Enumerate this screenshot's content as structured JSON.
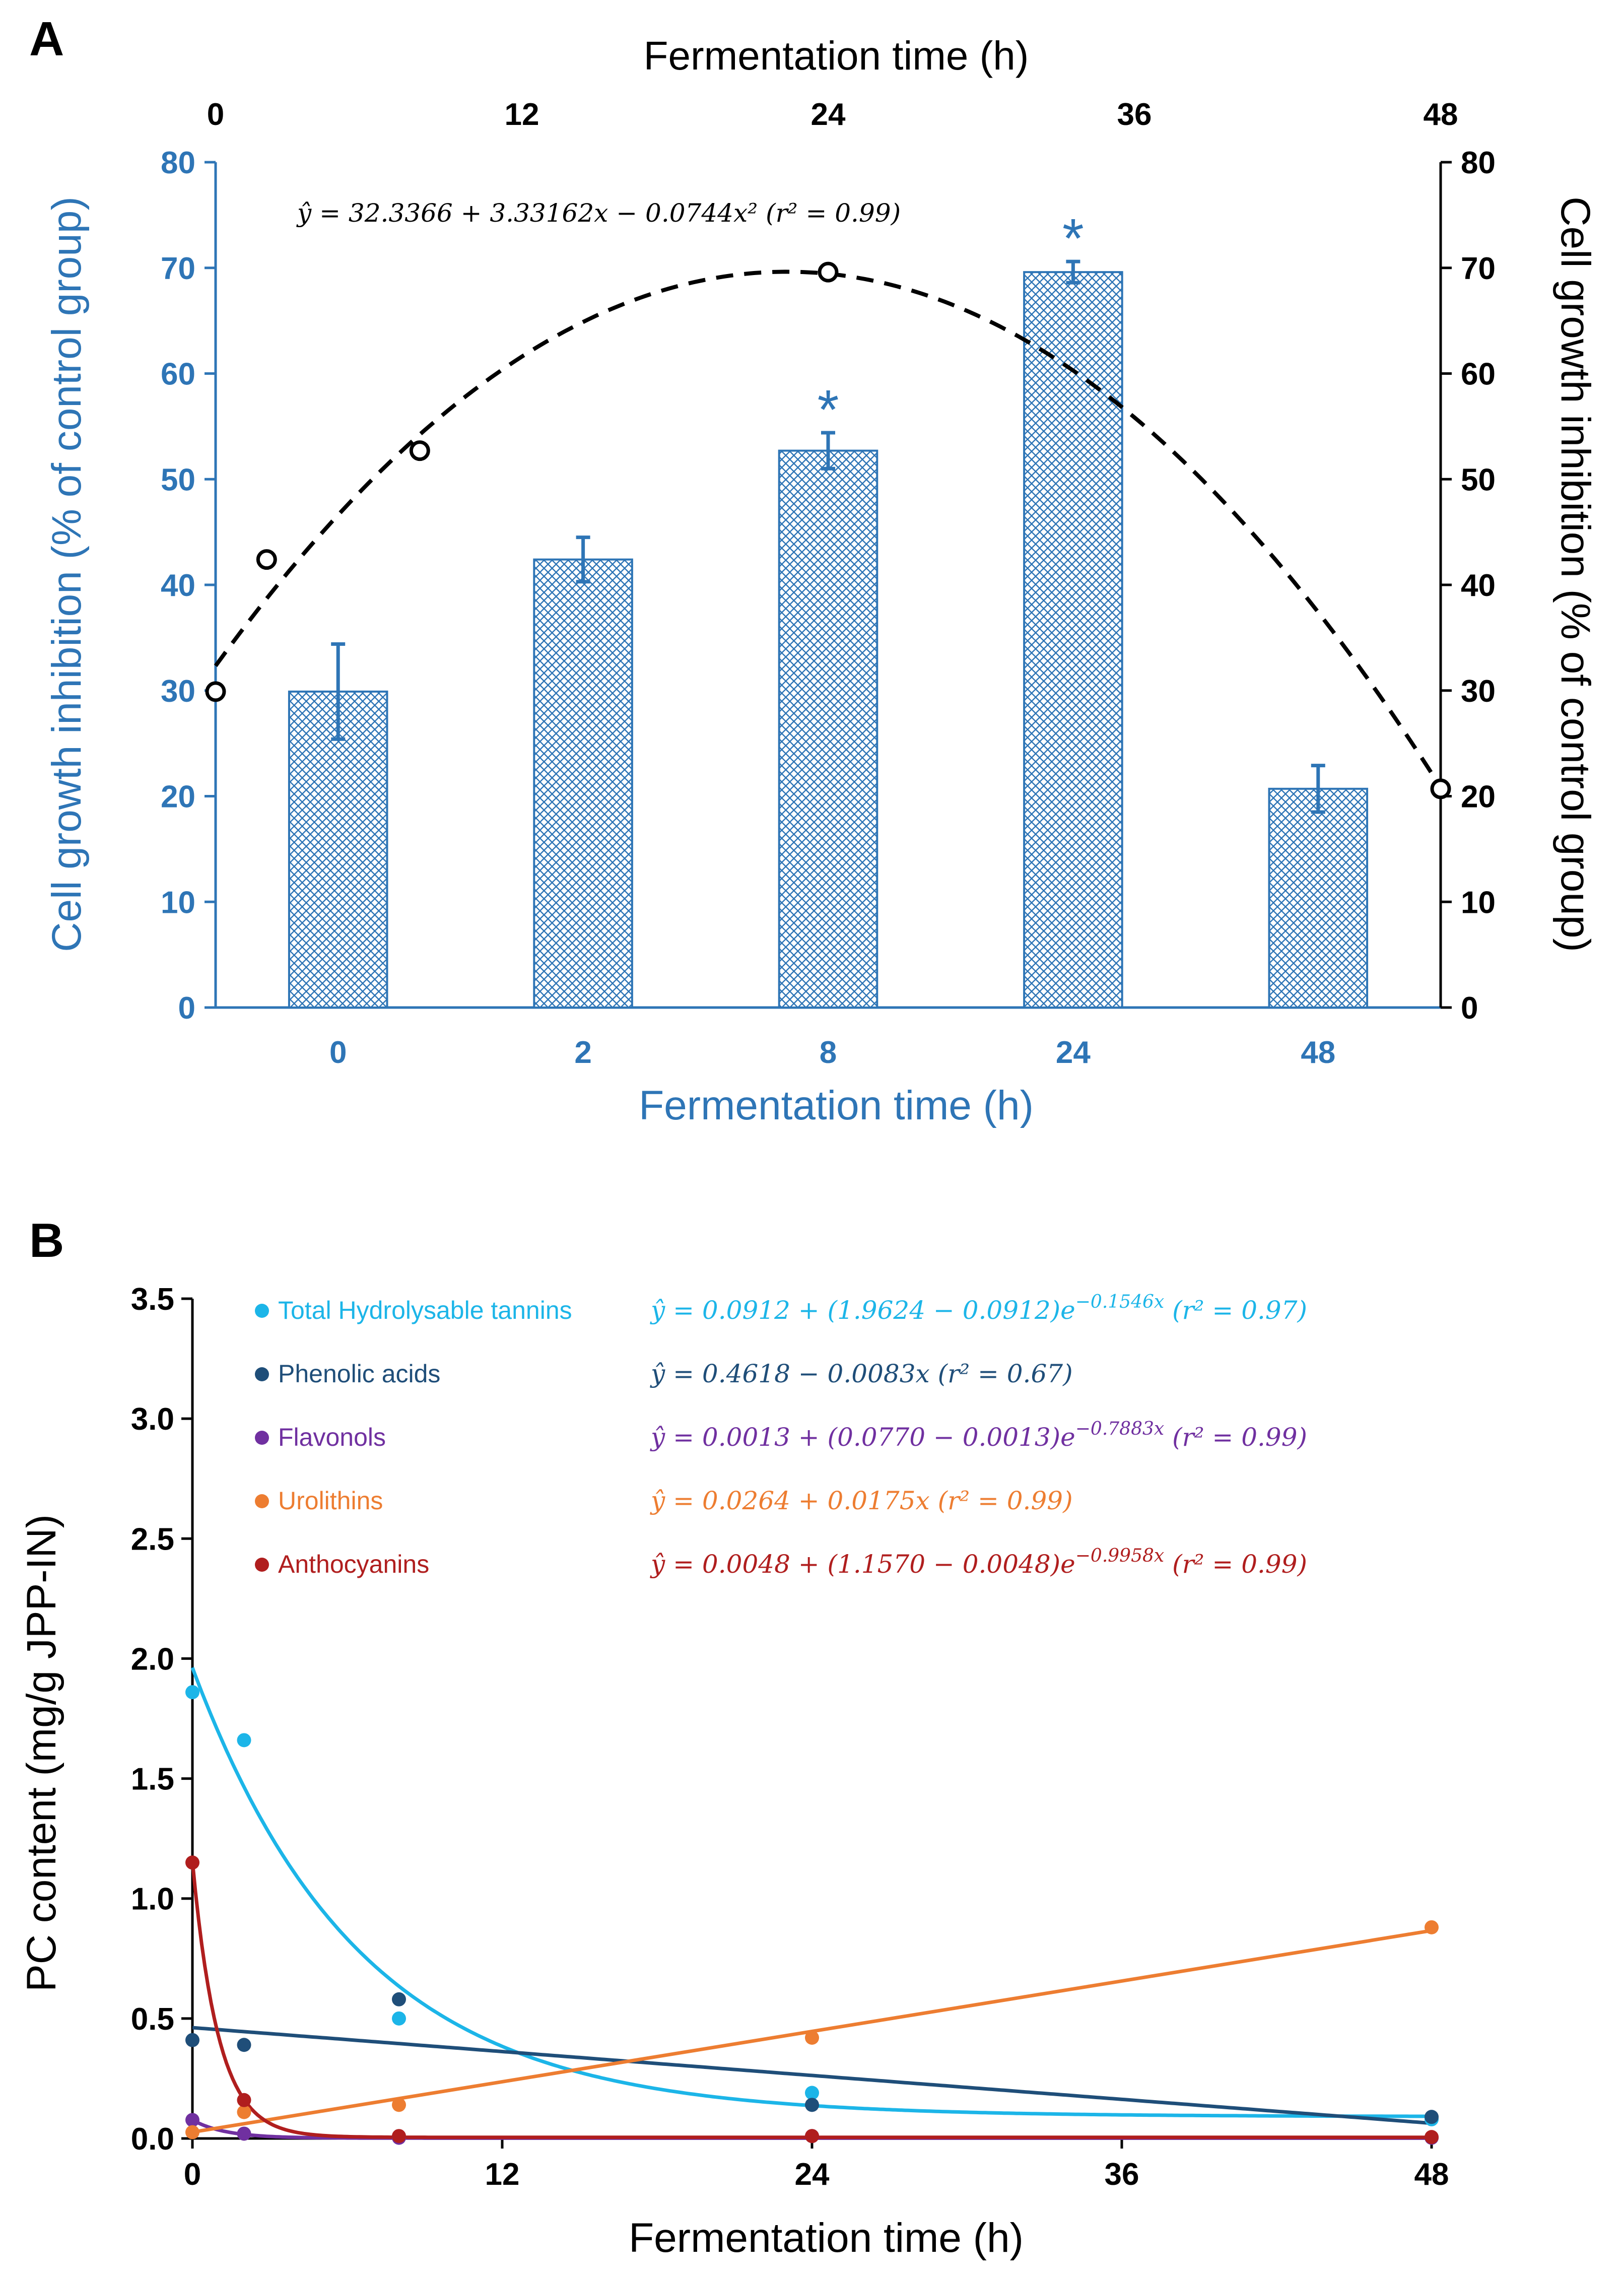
{
  "panel_a_label": "A",
  "panel_b_label": "B",
  "chart_data": [
    {
      "type": "bar",
      "panel": "A",
      "categories": [
        "0",
        "2",
        "8",
        "24",
        "48"
      ],
      "values": [
        29.9,
        42.4,
        52.7,
        69.6,
        20.7
      ],
      "errors": [
        4.5,
        2.1,
        1.7,
        1.0,
        2.2
      ],
      "significant": [
        "",
        "",
        "*",
        "*",
        ""
      ],
      "xlabel": "Fermentation time (h)",
      "ylabel": "Cell growth inhibition (% of control group)",
      "ylim": [
        0,
        80
      ],
      "yticks": [
        "0",
        "10",
        "20",
        "30",
        "40",
        "50",
        "60",
        "70",
        "80"
      ],
      "bar_color": "#2E75B6",
      "top_axis": {
        "label": "Fermentation time (h)",
        "ticks": [
          "0",
          "12",
          "24",
          "36",
          "48"
        ],
        "xlim": [
          0,
          48
        ]
      },
      "right_axis": {
        "label": "Cell growth inhibition (% of control group)",
        "ticks": [
          "0",
          "10",
          "20",
          "30",
          "40",
          "50",
          "60",
          "70",
          "80"
        ],
        "ylim": [
          0,
          80
        ]
      },
      "overlay": {
        "type": "scatter+fit",
        "points": [
          {
            "x": 0,
            "y": 29.9
          },
          {
            "x": 2,
            "y": 42.4
          },
          {
            "x": 8,
            "y": 52.7
          },
          {
            "x": 24,
            "y": 69.6
          },
          {
            "x": 48,
            "y": 20.7
          }
        ],
        "fit": {
          "a": 32.3366,
          "b": 3.33162,
          "c": -0.0744
        },
        "equation": "ŷ = 32.3366 + 3.33162x − 0.0744x² (r² = 0.99)",
        "color": "#000000"
      }
    },
    {
      "type": "scatter",
      "panel": "B",
      "xlabel": "Fermentation time (h)",
      "ylabel": "PC content (mg/g JPP-IN)",
      "xlim": [
        0,
        48
      ],
      "ylim": [
        0,
        3.5
      ],
      "xticks": [
        "0",
        "12",
        "24",
        "36",
        "48"
      ],
      "yticks": [
        "0.0",
        "0.5",
        "1.0",
        "1.5",
        "2.0",
        "2.5",
        "3.0",
        "3.5"
      ],
      "series": [
        {
          "name": "Total Hydrolysable tannins",
          "color": "#1CB5E8",
          "x": [
            0,
            2,
            8,
            24,
            48
          ],
          "y": [
            1.86,
            1.66,
            0.5,
            0.19,
            0.08
          ],
          "fit": {
            "kind": "exp",
            "a": 0.0912,
            "b": 1.9624,
            "k": 0.1546
          },
          "equation": "ŷ = 0.0912 + (1.9624 − 0.0912)e^(−0.1546x) (r² = 0.97)"
        },
        {
          "name": "Phenolic acids",
          "color": "#1F4E79",
          "x": [
            0,
            2,
            8,
            24,
            48
          ],
          "y": [
            0.41,
            0.39,
            0.58,
            0.14,
            0.09
          ],
          "fit": {
            "kind": "linear",
            "a": 0.4618,
            "b": -0.0083
          },
          "equation": "ŷ = 0.4618 − 0.0083x (r² = 0.67)"
        },
        {
          "name": "Flavonols",
          "color": "#7030A0",
          "x": [
            0,
            2,
            8,
            24,
            48
          ],
          "y": [
            0.077,
            0.02,
            0.003,
            0.01,
            0.003
          ],
          "fit": {
            "kind": "exp",
            "a": 0.0013,
            "b": 0.077,
            "k": 0.7883
          },
          "equation": "ŷ = 0.0013 + (0.0770 − 0.0013)e^(−0.7883x) (r² = 0.99)"
        },
        {
          "name": "Urolithins",
          "color": "#ED7D31",
          "x": [
            0,
            2,
            8,
            24,
            48
          ],
          "y": [
            0.026,
            0.11,
            0.14,
            0.42,
            0.88
          ],
          "fit": {
            "kind": "linear",
            "a": 0.0264,
            "b": 0.0175
          },
          "equation": "ŷ = 0.0264 + 0.0175x (r² = 0.99)"
        },
        {
          "name": "Anthocyanins",
          "color": "#B01E1E",
          "x": [
            0,
            2,
            8,
            24,
            48
          ],
          "y": [
            1.15,
            0.16,
            0.01,
            0.01,
            0.006
          ],
          "fit": {
            "kind": "exp",
            "a": 0.0048,
            "b": 1.157,
            "k": 0.9958
          },
          "equation": "ŷ = 0.0048 + (1.1570 − 0.0048)e^(−0.9958x) (r² = 0.99)"
        }
      ]
    }
  ]
}
